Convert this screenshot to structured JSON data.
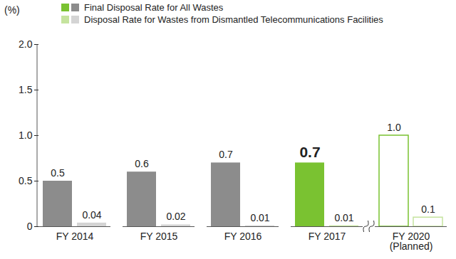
{
  "chart_data": {
    "type": "bar",
    "y_label": "(%)",
    "categories": [
      "FY 2014",
      "FY 2015",
      "FY 2016",
      "FY 2017",
      "FY 2020\n(Planned)"
    ],
    "series": [
      {
        "name": "Final Disposal Rate for All Wastes",
        "colors": [
          "#8c8c8c",
          "#8c8c8c",
          "#8c8c8c",
          "#7ac231",
          "#7ac231"
        ],
        "values": [
          0.5,
          0.6,
          0.7,
          0.7,
          1.0
        ],
        "value_labels": [
          "0.5",
          "0.6",
          "0.7",
          "0.7",
          "1.0"
        ]
      },
      {
        "name": "Disposal Rate for Wastes from Dismantled Telecommunications Facilities",
        "colors": [
          "#d4d4d4",
          "#d4d4d4",
          "#d4d4d4",
          "#c5e39e",
          "#c5e39e"
        ],
        "values": [
          0.04,
          0.02,
          0.01,
          0.01,
          0.1
        ],
        "value_labels": [
          "0.04",
          "0.02",
          "0.01",
          "0.01",
          "0.1"
        ]
      }
    ],
    "ylim": [
      0,
      2.0
    ],
    "yticks": [
      0,
      {
        "value": 0.5,
        "label": "0.5"
      },
      {
        "value": 1.0,
        "label": "1.0"
      },
      {
        "value": 1.5,
        "label": "1.5"
      },
      {
        "value": 2.0,
        "label": "2.0"
      }
    ],
    "data_labels": true,
    "grid": false,
    "legend": "top"
  }
}
